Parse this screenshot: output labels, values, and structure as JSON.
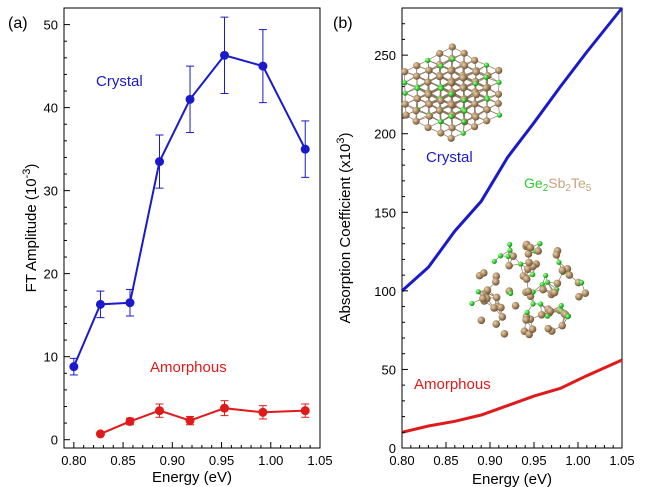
{
  "chart_data": [
    {
      "type": "line",
      "panel_label": "(a)",
      "xlabel": "Energy (eV)",
      "ylabel": "FT Amplitude (10",
      "ylabel_exp": "-3",
      "ylabel_close": ")",
      "xlim": [
        0.79,
        1.05
      ],
      "ylim": [
        -1,
        52
      ],
      "xticks": [
        "0.80",
        "0.85",
        "0.90",
        "0.95",
        "1.00",
        "1.05"
      ],
      "yticks": [
        "0",
        "10",
        "20",
        "30",
        "40",
        "50"
      ],
      "series": [
        {
          "name": "Crystal",
          "color": "#1a1acc",
          "x": [
            0.8,
            0.827,
            0.857,
            0.887,
            0.918,
            0.953,
            0.992,
            1.035
          ],
          "y": [
            8.8,
            16.3,
            16.5,
            33.5,
            41.0,
            46.3,
            45.0,
            35.0
          ],
          "err": [
            1.0,
            1.6,
            1.6,
            3.2,
            4.0,
            4.6,
            4.4,
            3.4
          ]
        },
        {
          "name": "Amorphous",
          "color": "#e01a1a",
          "x": [
            0.827,
            0.857,
            0.887,
            0.918,
            0.953,
            0.992,
            1.035
          ],
          "y": [
            0.7,
            2.2,
            3.5,
            2.3,
            3.8,
            3.3,
            3.5
          ],
          "err": [
            0.2,
            0.4,
            0.8,
            0.5,
            0.9,
            0.8,
            0.8
          ]
        }
      ]
    },
    {
      "type": "line",
      "panel_label": "(b)",
      "xlabel": "Energy (eV)",
      "ylabel": "Absorption Coefficient (x10",
      "ylabel_exp": "3",
      "ylabel_close": ")",
      "xlim": [
        0.8,
        1.05
      ],
      "ylim": [
        0,
        280
      ],
      "xticks": [
        "0.80",
        "0.85",
        "0.90",
        "0.95",
        "1.00",
        "1.05"
      ],
      "yticks": [
        "0",
        "50",
        "100",
        "150",
        "200",
        "250"
      ],
      "compound": {
        "parts": [
          "Ge",
          "2",
          "Sb",
          "2",
          "Te",
          "5"
        ]
      },
      "series": [
        {
          "name": "Crystal",
          "color": "#1a1acc",
          "x": [
            0.8,
            0.83,
            0.86,
            0.89,
            0.92,
            0.95,
            0.98,
            1.01,
            1.05
          ],
          "y": [
            100,
            115,
            138,
            157,
            185,
            207,
            230,
            252,
            280
          ]
        },
        {
          "name": "Amorphous",
          "color": "#e01a1a",
          "x": [
            0.8,
            0.83,
            0.86,
            0.89,
            0.92,
            0.95,
            0.98,
            1.01,
            1.05
          ],
          "y": [
            10,
            14,
            17,
            21,
            27,
            33,
            38,
            46,
            56
          ]
        }
      ]
    }
  ]
}
